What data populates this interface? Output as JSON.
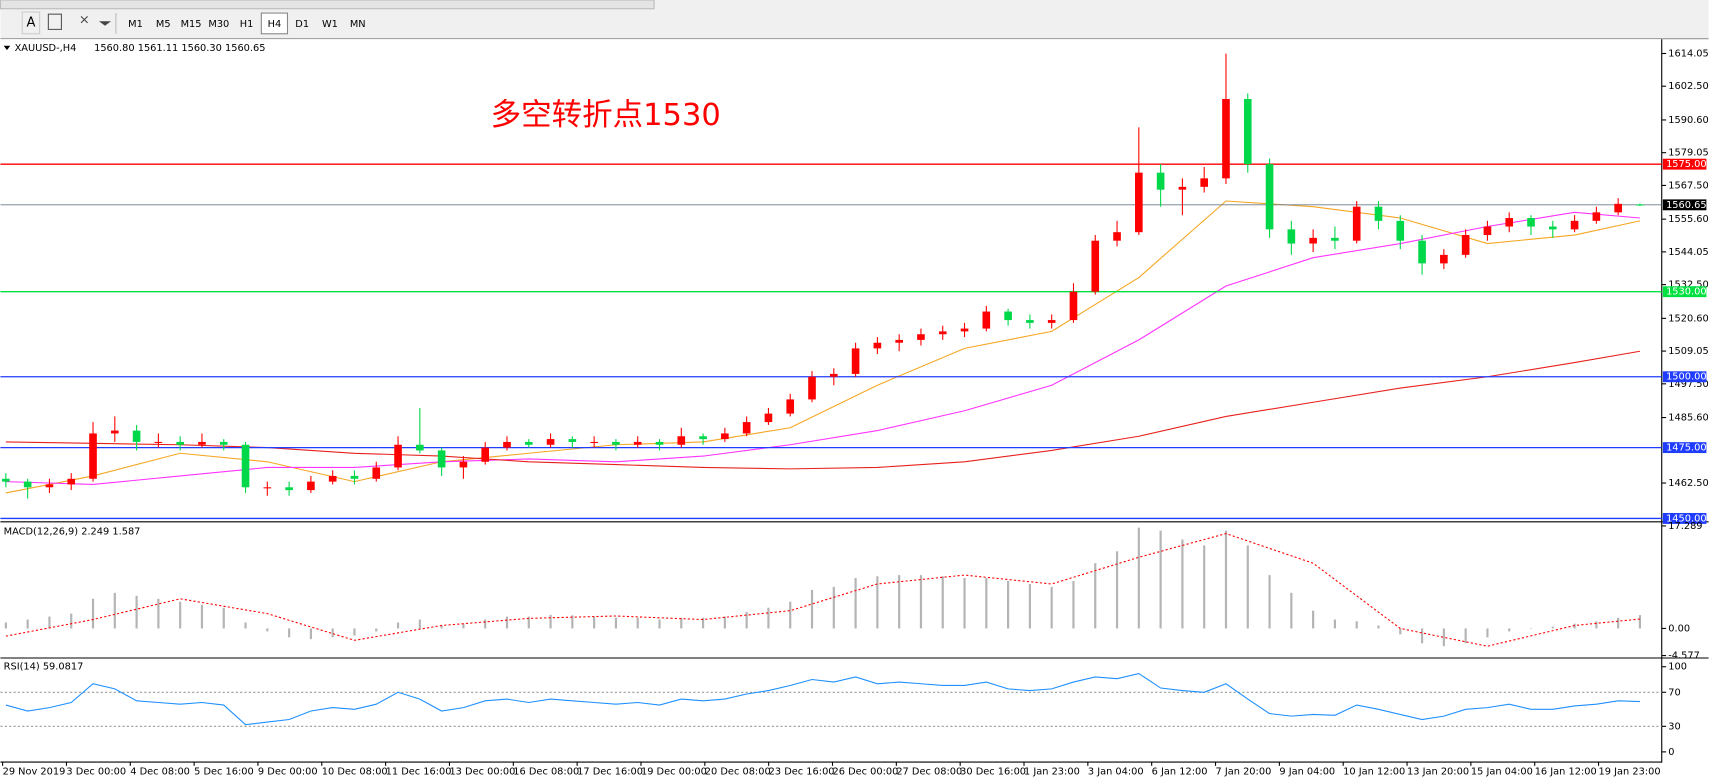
{
  "toolbar": {
    "text_tool": "A",
    "timeframes": [
      "M1",
      "M5",
      "M15",
      "M30",
      "H1",
      "H4",
      "D1",
      "W1",
      "MN"
    ],
    "active_timeframe": "H4"
  },
  "chart_data": {
    "type": "candlestick",
    "title": "XAUUSD-,H4",
    "ohlc_label": "1560.80 1561.11 1560.30 1560.65",
    "annotation": "多空转折点1530",
    "up_color": "#ff0000",
    "down_color": "#00d84a",
    "candles": [
      [
        1464,
        1466,
        1461,
        1463
      ],
      [
        1463,
        1464,
        1457,
        1461
      ],
      [
        1461,
        1464,
        1459,
        1462
      ],
      [
        1462,
        1466,
        1460,
        1464
      ],
      [
        1464,
        1484,
        1463,
        1480
      ],
      [
        1480,
        1486,
        1477,
        1481
      ],
      [
        1481,
        1483,
        1474,
        1477
      ],
      [
        1477,
        1480,
        1475,
        1477
      ],
      [
        1477,
        1479,
        1474,
        1476
      ],
      [
        1476,
        1480,
        1475,
        1477
      ],
      [
        1477,
        1478,
        1474,
        1476
      ],
      [
        1476,
        1477,
        1459,
        1461
      ],
      [
        1461,
        1463,
        1458,
        1461
      ],
      [
        1461,
        1463,
        1458,
        1460
      ],
      [
        1460,
        1465,
        1459,
        1463
      ],
      [
        1463,
        1467,
        1462,
        1465
      ],
      [
        1465,
        1467,
        1462,
        1464
      ],
      [
        1464,
        1470,
        1463,
        1468
      ],
      [
        1468,
        1479,
        1467,
        1476
      ],
      [
        1476,
        1489,
        1473,
        1474
      ],
      [
        1474,
        1475,
        1465,
        1468
      ],
      [
        1468,
        1472,
        1464,
        1470
      ],
      [
        1470,
        1477,
        1469,
        1475
      ],
      [
        1475,
        1479,
        1474,
        1477
      ],
      [
        1477,
        1478,
        1475,
        1476
      ],
      [
        1476,
        1480,
        1475,
        1478
      ],
      [
        1478,
        1479,
        1475,
        1477
      ],
      [
        1477,
        1479,
        1475,
        1477
      ],
      [
        1477,
        1478,
        1474,
        1476
      ],
      [
        1476,
        1479,
        1475,
        1477
      ],
      [
        1477,
        1478,
        1474,
        1476
      ],
      [
        1476,
        1482,
        1475,
        1479
      ],
      [
        1479,
        1480,
        1476,
        1478
      ],
      [
        1478,
        1482,
        1477,
        1480
      ],
      [
        1480,
        1486,
        1479,
        1484
      ],
      [
        1484,
        1489,
        1483,
        1487
      ],
      [
        1487,
        1494,
        1486,
        1492
      ],
      [
        1492,
        1502,
        1491,
        1500
      ],
      [
        1500,
        1503,
        1497,
        1501
      ],
      [
        1501,
        1512,
        1500,
        1510
      ],
      [
        1510,
        1514,
        1508,
        1512
      ],
      [
        1512,
        1515,
        1509,
        1513
      ],
      [
        1513,
        1517,
        1511,
        1515
      ],
      [
        1515,
        1518,
        1513,
        1516
      ],
      [
        1516,
        1519,
        1514,
        1517
      ],
      [
        1517,
        1525,
        1516,
        1523
      ],
      [
        1523,
        1524,
        1518,
        1520
      ],
      [
        1520,
        1522,
        1517,
        1519
      ],
      [
        1519,
        1522,
        1517,
        1520
      ],
      [
        1520,
        1533,
        1519,
        1530
      ],
      [
        1530,
        1550,
        1529,
        1548
      ],
      [
        1548,
        1555,
        1546,
        1551
      ],
      [
        1551,
        1588,
        1550,
        1572
      ],
      [
        1572,
        1575,
        1560,
        1566
      ],
      [
        1566,
        1570,
        1557,
        1567
      ],
      [
        1567,
        1574,
        1565,
        1570
      ],
      [
        1570,
        1614,
        1568,
        1598
      ],
      [
        1598,
        1600,
        1572,
        1575
      ],
      [
        1575,
        1577,
        1549,
        1552
      ],
      [
        1552,
        1555,
        1543,
        1547
      ],
      [
        1547,
        1552,
        1544,
        1549
      ],
      [
        1549,
        1553,
        1545,
        1548
      ],
      [
        1548,
        1562,
        1547,
        1560
      ],
      [
        1560,
        1562,
        1552,
        1555
      ],
      [
        1555,
        1557,
        1545,
        1548
      ],
      [
        1548,
        1550,
        1536,
        1540
      ],
      [
        1540,
        1545,
        1538,
        1543
      ],
      [
        1543,
        1552,
        1542,
        1550
      ],
      [
        1550,
        1555,
        1548,
        1553
      ],
      [
        1553,
        1558,
        1551,
        1556
      ],
      [
        1556,
        1557,
        1550,
        1553
      ],
      [
        1553,
        1555,
        1549,
        1552
      ],
      [
        1552,
        1557,
        1551,
        1555
      ],
      [
        1555,
        1560,
        1554,
        1558
      ],
      [
        1558,
        1563,
        1557,
        1561
      ],
      [
        1560.8,
        1561.11,
        1560.3,
        1560.65
      ]
    ],
    "ylim": [
      1449.2,
      1618.7
    ],
    "yticks": [
      1614.05,
      {
        "value": 1602.5,
        "label": "1602.50"
      },
      {
        "value": 1590.6,
        "label": "1590.60"
      },
      1579.05,
      {
        "value": 1567.5,
        "label": "1567.50"
      },
      {
        "value": 1555.6,
        "label": "1555.60"
      },
      1544.05,
      {
        "value": 1532.5,
        "label": "1532.50"
      },
      {
        "value": 1520.6,
        "label": "1520.60"
      },
      1509.05,
      {
        "value": 1497.5,
        "label": "1497.50"
      },
      {
        "value": 1485.6,
        "label": "1485.60"
      },
      {
        "value": 1462.5,
        "label": "1462.50"
      }
    ],
    "hlines": [
      {
        "value": 1575,
        "label": "1575.00",
        "color": "#ff0000"
      },
      {
        "value": 1530,
        "label": "1530.00",
        "color": "#00e040"
      },
      {
        "value": 1500,
        "label": "1500.00",
        "color": "#1f3cff"
      },
      {
        "value": 1475,
        "label": "1475.00",
        "color": "#1f3cff"
      },
      {
        "value": 1450,
        "label": "1450.00",
        "color": "#1f3cff"
      }
    ],
    "last_price": 1560.65,
    "ma_x": [
      0,
      4,
      8,
      12,
      16,
      20,
      24,
      28,
      32,
      36,
      40,
      44,
      48,
      52,
      56,
      60,
      64,
      68,
      72,
      75
    ],
    "moving_averages": [
      {
        "color": "#f5a623",
        "values": [
          1459,
          1465,
          1473,
          1470,
          1463,
          1470,
          1473,
          1476,
          1477,
          1482,
          1497,
          1510,
          1516,
          1535,
          1562,
          1560,
          1556,
          1547,
          1550,
          1555
        ]
      },
      {
        "color": "#ff33ff",
        "values": [
          1463,
          1462,
          1465,
          1468,
          1468,
          1470,
          1471,
          1470,
          1472,
          1476,
          1481,
          1488,
          1497,
          1513,
          1532,
          1542,
          1547,
          1553,
          1558,
          1556
        ]
      },
      {
        "color": "#e8201c",
        "values": [
          1477,
          1476.5,
          1476,
          1475,
          1473,
          1472,
          1470,
          1469,
          1468,
          1467.5,
          1468,
          1470,
          1474,
          1479,
          1486,
          1491,
          1496,
          1500,
          1505,
          1509
        ]
      }
    ],
    "x_labels": [
      "29 Nov 2019",
      "3 Dec 00:00",
      "4 Dec 08:00",
      "5 Dec 16:00",
      "9 Dec 00:00",
      "10 Dec 08:00",
      "11 Dec 16:00",
      "13 Dec 00:00",
      "16 Dec 08:00",
      "17 Dec 16:00",
      "19 Dec 00:00",
      "20 Dec 08:00",
      "23 Dec 16:00",
      "26 Dec 00:00",
      "27 Dec 08:00",
      "30 Dec 16:00",
      "1 Jan 23:00",
      "3 Jan 04:00",
      "6 Jan 12:00",
      "7 Jan 20:00",
      "9 Jan 04:00",
      "10 Jan 12:00",
      "13 Jan 20:00",
      "15 Jan 04:00",
      "16 Jan 12:00",
      "19 Jan 23:00"
    ],
    "macd": {
      "title": "MACD(12,26,9) 2.249 1.587",
      "histogram": [
        1,
        1.5,
        2,
        2.5,
        5,
        6,
        5.5,
        5,
        4.5,
        4,
        3.5,
        1,
        -0.5,
        -1.5,
        -1.8,
        -1.5,
        -1.2,
        -0.5,
        1,
        1.5,
        0.5,
        0.8,
        1.5,
        2,
        2,
        2.3,
        2.2,
        2,
        1.8,
        1.8,
        1.5,
        1.8,
        1.8,
        2,
        2.8,
        3.5,
        4.5,
        6.5,
        7,
        8.5,
        8.8,
        9,
        9,
        8.8,
        8.5,
        8.5,
        8,
        7.5,
        7,
        8,
        11,
        13,
        17,
        16.5,
        15,
        14,
        16.5,
        14,
        9,
        6,
        3,
        1.5,
        1.2,
        0.5,
        -1,
        -2.5,
        -3,
        -2.5,
        -1.5,
        -0.5,
        0,
        0.3,
        0.8,
        1.2,
        1.8,
        2.249
      ],
      "signal": [
        -1.3,
        1.5,
        5,
        2.5,
        -2,
        0.5,
        1.7,
        2.1,
        1.5,
        3,
        7.5,
        9,
        7.5,
        12,
        16,
        11,
        0,
        -3,
        0.5,
        1.587
      ],
      "ylim": [
        -4.8,
        17.8
      ],
      "yticks": [
        17.289,
        {
          "value": 0,
          "label": "0.00"
        },
        -4.577
      ]
    },
    "rsi": {
      "title": "RSI(14) 59.0817",
      "values": [
        55,
        48,
        52,
        58,
        80,
        74,
        60,
        58,
        56,
        58,
        55,
        32,
        35,
        38,
        48,
        52,
        50,
        56,
        70,
        62,
        48,
        52,
        60,
        62,
        58,
        62,
        60,
        58,
        56,
        58,
        55,
        62,
        60,
        62,
        68,
        72,
        78,
        85,
        82,
        88,
        80,
        82,
        80,
        78,
        78,
        82,
        74,
        72,
        74,
        82,
        88,
        86,
        92,
        75,
        72,
        70,
        80,
        62,
        45,
        42,
        44,
        43,
        55,
        50,
        44,
        38,
        42,
        50,
        52,
        56,
        50,
        50,
        54,
        56,
        60,
        59.0817
      ],
      "ylim": [
        -10,
        109
      ],
      "yticks": [
        100,
        70,
        30,
        0
      ],
      "color": "#1e90ff"
    }
  }
}
